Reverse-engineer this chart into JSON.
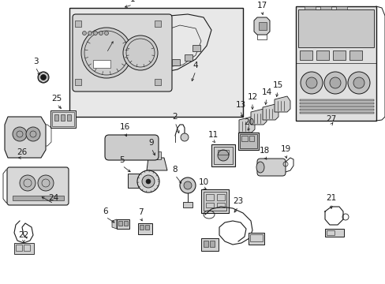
{
  "bg_color": "#ffffff",
  "line_color": "#1a1a1a",
  "fill_light": "#e8e8e8",
  "fill_mid": "#d0d0d0",
  "fig_width": 4.89,
  "fig_height": 3.6,
  "dpi": 100,
  "label_fontsize": 7.5,
  "arrow_lw": 0.55,
  "part_lw": 0.7
}
